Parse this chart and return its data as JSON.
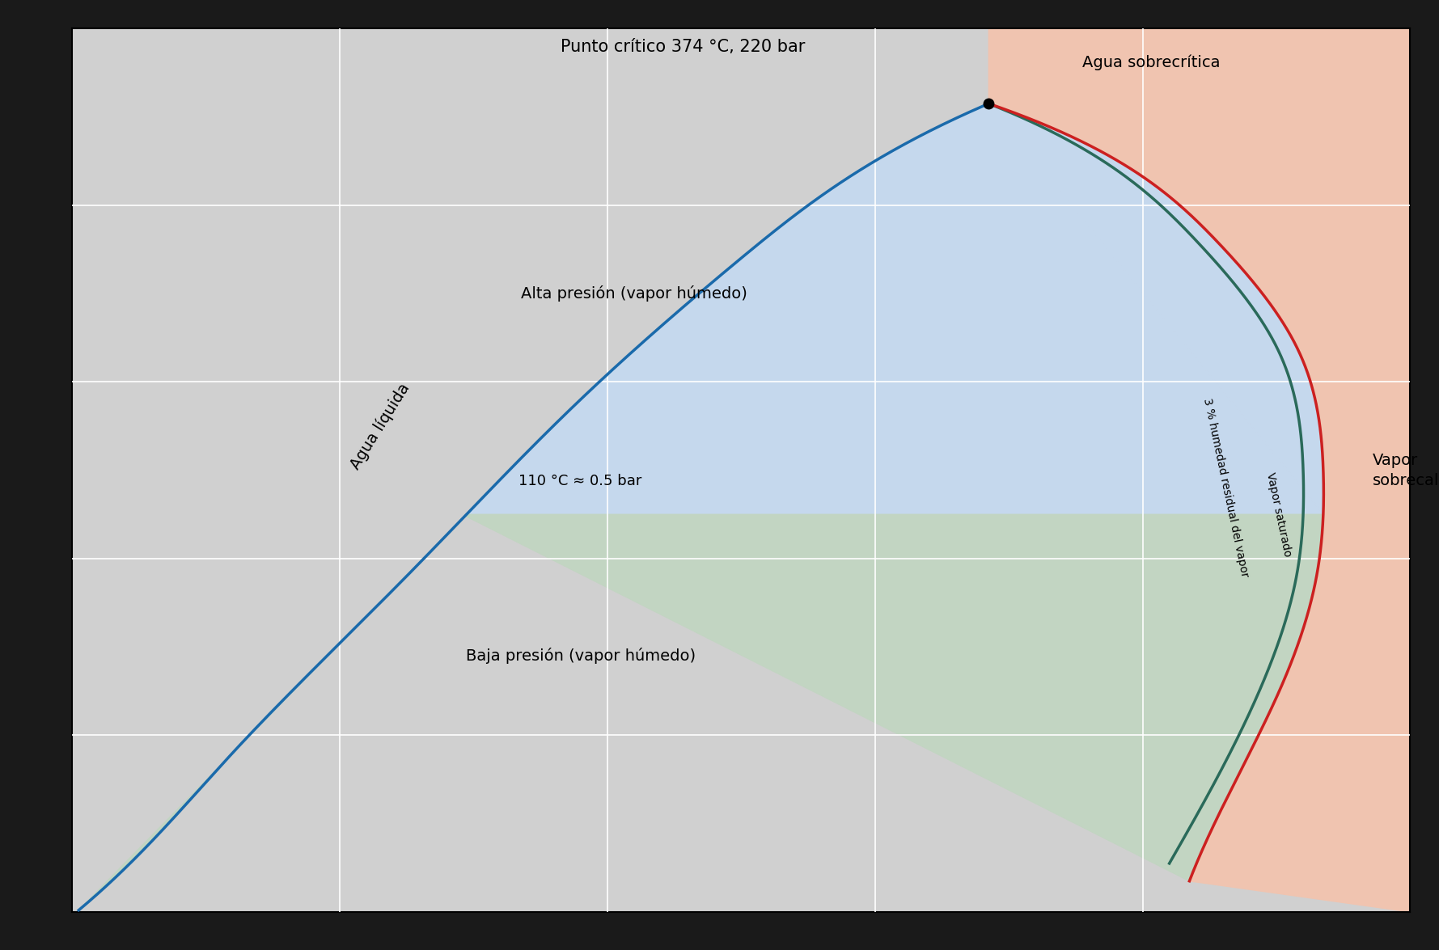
{
  "background_color": "#1a1a1a",
  "plot_bg_gray": "#d0d0d0",
  "plot_bg_blue_high": "#c5d8ed",
  "plot_bg_blue_low": "#c2d5c2",
  "plot_bg_salmon": "#f0c4b0",
  "grid_color": "#ffffff",
  "blue_line_color": "#1a6aab",
  "green_line_color": "#2a6a5a",
  "red_line_color": "#cc2020",
  "critical_point_label": "Punto crítico 374 °C, 220 bar",
  "supercritical_label": "Agua sobrecrítica",
  "liquid_label": "Agua líquida",
  "high_pressure_label": "Alta presión (vapor húmedo)",
  "low_pressure_label": "Baja presión (vapor húmedo)",
  "isotherm_label": "110 °C ≈ 0.5 bar",
  "residual_humidity_label": "3 % humedad residual del vapor",
  "saturated_vapor_label": "Vapor saturado",
  "superheated_label": "Vapor\nsobrecalentado",
  "label_fontsize": 14,
  "small_fontsize": 13
}
